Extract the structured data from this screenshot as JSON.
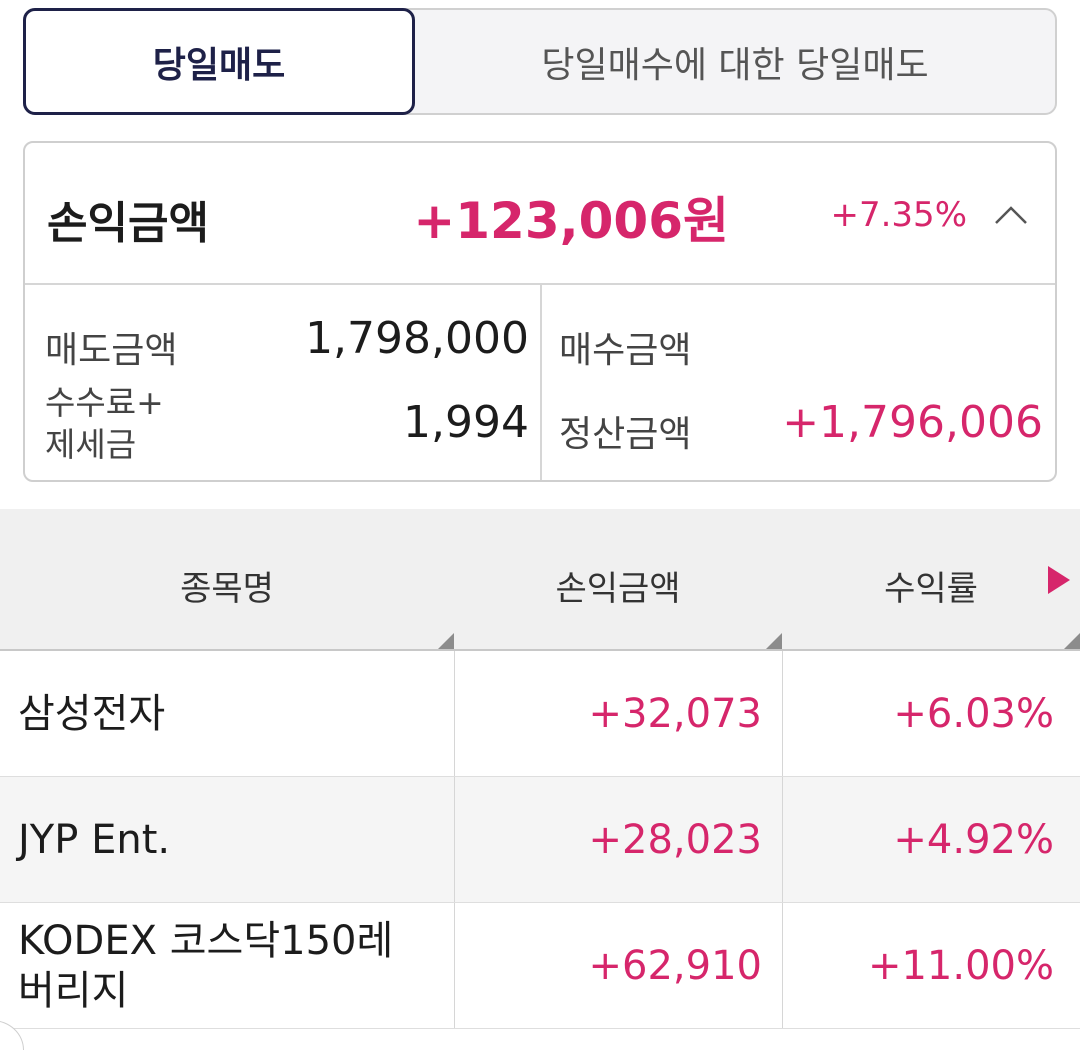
{
  "tabs": [
    {
      "label": "당일매도",
      "active": true
    },
    {
      "label": "당일매수에 대한 당일매도",
      "active": false
    }
  ],
  "summary": {
    "title": "손익금액",
    "amount": "+123,006원",
    "rate": "+7.35%",
    "toggle_icon": "chevron-up-icon",
    "sell_amount_label": "매도금액",
    "sell_amount": "1,798,000",
    "fee_tax_label_line1": "수수료+",
    "fee_tax_label_line2": "제세금",
    "fee_tax": "1,994",
    "buy_amount_label": "매수금액",
    "buy_amount": "",
    "settlement_label": "정산금액",
    "settlement": "+1,796,006"
  },
  "table": {
    "headers": [
      "종목명",
      "손익금액",
      "수익률"
    ],
    "next_icon": "play-right-icon",
    "rows": [
      {
        "name": "삼성전자",
        "pl": "+32,073",
        "rate": "+6.03%"
      },
      {
        "name": "JYP Ent.",
        "pl": "+28,023",
        "rate": "+4.92%"
      },
      {
        "name": "KODEX 코스닥150레\n버리지",
        "name_line1": "KODEX 코스닥150레",
        "name_line2": "버리지",
        "pl": "+62,910",
        "rate": "+11.00%"
      }
    ]
  },
  "colors": {
    "accent_pink": "#d6266b",
    "active_tab_border": "#1e2148"
  }
}
